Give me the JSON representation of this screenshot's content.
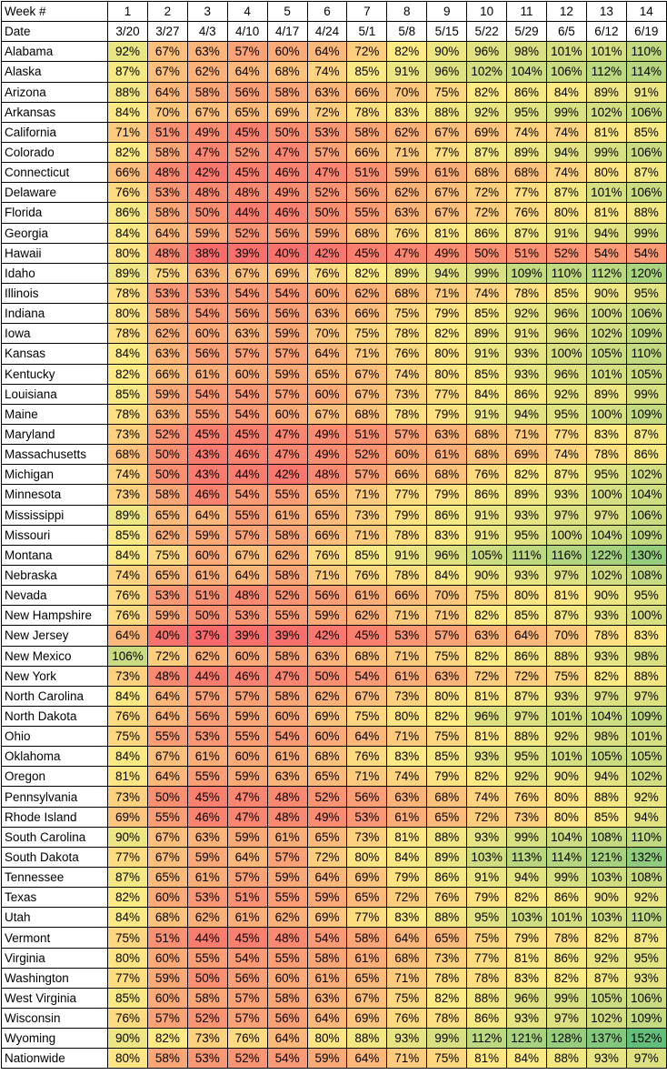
{
  "table": {
    "week_label": "Week #",
    "date_label": "Date",
    "weeks": [
      "1",
      "2",
      "3",
      "4",
      "5",
      "6",
      "7",
      "8",
      "9",
      "10",
      "11",
      "12",
      "13",
      "14"
    ],
    "dates": [
      "3/20",
      "3/27",
      "4/3",
      "4/10",
      "4/17",
      "4/24",
      "5/1",
      "5/8",
      "5/15",
      "5/22",
      "5/29",
      "6/5",
      "6/12",
      "6/19"
    ],
    "rows": [
      {
        "state": "Alabama",
        "values": [
          92,
          67,
          63,
          57,
          60,
          64,
          72,
          82,
          90,
          96,
          98,
          101,
          101,
          110
        ]
      },
      {
        "state": "Alaska",
        "values": [
          87,
          67,
          62,
          64,
          68,
          74,
          85,
          91,
          96,
          102,
          104,
          106,
          112,
          114
        ]
      },
      {
        "state": "Arizona",
        "values": [
          88,
          64,
          58,
          56,
          58,
          63,
          66,
          70,
          75,
          82,
          86,
          84,
          89,
          91
        ]
      },
      {
        "state": "Arkansas",
        "values": [
          84,
          70,
          67,
          65,
          69,
          72,
          78,
          83,
          88,
          92,
          95,
          99,
          102,
          106
        ]
      },
      {
        "state": "California",
        "values": [
          71,
          51,
          49,
          45,
          50,
          53,
          58,
          62,
          67,
          69,
          74,
          74,
          81,
          85
        ]
      },
      {
        "state": "Colorado",
        "values": [
          82,
          58,
          47,
          52,
          47,
          57,
          66,
          71,
          77,
          87,
          89,
          94,
          99,
          106
        ]
      },
      {
        "state": "Connecticut",
        "values": [
          66,
          48,
          42,
          45,
          46,
          47,
          51,
          59,
          61,
          68,
          68,
          74,
          80,
          87
        ]
      },
      {
        "state": "Delaware",
        "values": [
          76,
          53,
          48,
          48,
          49,
          52,
          56,
          62,
          67,
          72,
          77,
          87,
          101,
          106
        ]
      },
      {
        "state": "Florida",
        "values": [
          86,
          58,
          50,
          44,
          46,
          50,
          55,
          63,
          67,
          72,
          76,
          80,
          81,
          88
        ]
      },
      {
        "state": "Georgia",
        "values": [
          84,
          64,
          59,
          52,
          56,
          59,
          68,
          76,
          81,
          86,
          87,
          91,
          94,
          99
        ]
      },
      {
        "state": "Hawaii",
        "values": [
          80,
          48,
          38,
          39,
          40,
          42,
          45,
          47,
          49,
          50,
          51,
          52,
          54,
          54
        ]
      },
      {
        "state": "Idaho",
        "values": [
          89,
          75,
          63,
          67,
          69,
          76,
          82,
          89,
          94,
          99,
          109,
          110,
          112,
          120
        ]
      },
      {
        "state": "Illinois",
        "values": [
          78,
          53,
          53,
          54,
          54,
          60,
          62,
          68,
          71,
          74,
          78,
          85,
          90,
          95
        ]
      },
      {
        "state": "Indiana",
        "values": [
          80,
          58,
          54,
          56,
          56,
          63,
          66,
          75,
          79,
          85,
          92,
          96,
          100,
          106
        ]
      },
      {
        "state": "Iowa",
        "values": [
          78,
          62,
          60,
          63,
          59,
          70,
          75,
          78,
          82,
          89,
          91,
          96,
          102,
          109
        ]
      },
      {
        "state": "Kansas",
        "values": [
          84,
          63,
          56,
          57,
          57,
          64,
          71,
          76,
          80,
          91,
          93,
          100,
          105,
          110
        ]
      },
      {
        "state": "Kentucky",
        "values": [
          82,
          66,
          61,
          60,
          59,
          65,
          67,
          74,
          80,
          85,
          93,
          96,
          101,
          105
        ]
      },
      {
        "state": "Louisiana",
        "values": [
          85,
          59,
          54,
          54,
          57,
          60,
          67,
          73,
          77,
          84,
          86,
          92,
          89,
          99
        ]
      },
      {
        "state": "Maine",
        "values": [
          78,
          63,
          55,
          54,
          60,
          67,
          68,
          78,
          79,
          91,
          94,
          95,
          100,
          109
        ]
      },
      {
        "state": "Maryland",
        "values": [
          73,
          52,
          45,
          45,
          47,
          49,
          51,
          57,
          63,
          68,
          71,
          77,
          83,
          87
        ]
      },
      {
        "state": "Massachusetts",
        "values": [
          68,
          50,
          43,
          46,
          47,
          49,
          52,
          60,
          61,
          68,
          69,
          74,
          78,
          86
        ]
      },
      {
        "state": "Michigan",
        "values": [
          74,
          50,
          43,
          44,
          42,
          48,
          57,
          66,
          68,
          76,
          82,
          87,
          95,
          102
        ]
      },
      {
        "state": "Minnesota",
        "values": [
          73,
          58,
          46,
          54,
          55,
          65,
          71,
          77,
          79,
          86,
          89,
          93,
          100,
          104
        ]
      },
      {
        "state": "Mississippi",
        "values": [
          89,
          65,
          64,
          55,
          61,
          65,
          73,
          79,
          86,
          91,
          93,
          97,
          97,
          106
        ]
      },
      {
        "state": "Missouri",
        "values": [
          85,
          62,
          59,
          57,
          58,
          66,
          71,
          78,
          83,
          91,
          95,
          100,
          104,
          109
        ]
      },
      {
        "state": "Montana",
        "values": [
          84,
          75,
          60,
          67,
          62,
          76,
          85,
          91,
          96,
          105,
          111,
          116,
          122,
          130
        ]
      },
      {
        "state": "Nebraska",
        "values": [
          74,
          65,
          61,
          64,
          58,
          71,
          76,
          78,
          84,
          90,
          93,
          97,
          102,
          108
        ]
      },
      {
        "state": "Nevada",
        "values": [
          76,
          53,
          51,
          48,
          52,
          56,
          61,
          66,
          70,
          75,
          80,
          81,
          90,
          95
        ]
      },
      {
        "state": "New Hampshire",
        "values": [
          76,
          59,
          50,
          53,
          55,
          59,
          62,
          71,
          71,
          82,
          85,
          87,
          93,
          100
        ]
      },
      {
        "state": "New Jersey",
        "values": [
          64,
          40,
          37,
          39,
          39,
          42,
          45,
          53,
          57,
          63,
          64,
          70,
          78,
          83
        ]
      },
      {
        "state": "New Mexico",
        "values": [
          106,
          72,
          62,
          60,
          58,
          63,
          68,
          71,
          75,
          82,
          86,
          88,
          93,
          98
        ]
      },
      {
        "state": "New York",
        "values": [
          73,
          48,
          44,
          46,
          47,
          50,
          54,
          61,
          63,
          72,
          72,
          75,
          82,
          88
        ]
      },
      {
        "state": "North Carolina",
        "values": [
          84,
          64,
          57,
          57,
          58,
          62,
          67,
          73,
          80,
          81,
          87,
          93,
          97,
          97
        ]
      },
      {
        "state": "North Dakota",
        "values": [
          76,
          64,
          56,
          59,
          60,
          69,
          75,
          80,
          82,
          96,
          97,
          101,
          104,
          109
        ]
      },
      {
        "state": "Ohio",
        "values": [
          75,
          55,
          53,
          55,
          54,
          60,
          64,
          71,
          75,
          81,
          88,
          92,
          98,
          101
        ]
      },
      {
        "state": "Oklahoma",
        "values": [
          84,
          67,
          61,
          60,
          61,
          68,
          76,
          83,
          85,
          93,
          95,
          101,
          105,
          105
        ]
      },
      {
        "state": "Oregon",
        "values": [
          81,
          64,
          55,
          59,
          63,
          65,
          71,
          74,
          79,
          82,
          92,
          90,
          94,
          102
        ]
      },
      {
        "state": "Pennsylvania",
        "values": [
          73,
          50,
          45,
          47,
          48,
          52,
          56,
          63,
          68,
          74,
          76,
          80,
          88,
          92
        ]
      },
      {
        "state": "Rhode Island",
        "values": [
          69,
          55,
          46,
          47,
          48,
          49,
          53,
          61,
          65,
          72,
          73,
          80,
          85,
          94
        ]
      },
      {
        "state": "South Carolina",
        "values": [
          90,
          67,
          63,
          59,
          61,
          65,
          73,
          81,
          88,
          93,
          99,
          104,
          108,
          110
        ]
      },
      {
        "state": "South Dakota",
        "values": [
          77,
          67,
          59,
          64,
          57,
          72,
          80,
          84,
          89,
          103,
          113,
          114,
          121,
          132
        ]
      },
      {
        "state": "Tennessee",
        "values": [
          87,
          65,
          61,
          57,
          59,
          64,
          69,
          79,
          86,
          91,
          94,
          99,
          103,
          108
        ]
      },
      {
        "state": "Texas",
        "values": [
          82,
          60,
          53,
          51,
          55,
          59,
          65,
          72,
          76,
          79,
          82,
          86,
          90,
          92
        ]
      },
      {
        "state": "Utah",
        "values": [
          84,
          68,
          62,
          61,
          62,
          69,
          77,
          83,
          88,
          95,
          103,
          101,
          103,
          110
        ]
      },
      {
        "state": "Vermont",
        "values": [
          75,
          51,
          44,
          45,
          48,
          54,
          58,
          64,
          65,
          75,
          79,
          78,
          82,
          87
        ]
      },
      {
        "state": "Virginia",
        "values": [
          80,
          60,
          55,
          54,
          55,
          58,
          61,
          68,
          73,
          77,
          81,
          86,
          92,
          95
        ]
      },
      {
        "state": "Washington",
        "values": [
          77,
          59,
          50,
          56,
          60,
          61,
          65,
          71,
          78,
          78,
          83,
          82,
          87,
          93
        ]
      },
      {
        "state": "West Virginia",
        "values": [
          85,
          60,
          58,
          57,
          58,
          63,
          67,
          75,
          82,
          88,
          96,
          99,
          105,
          106
        ]
      },
      {
        "state": "Wisconsin",
        "values": [
          76,
          57,
          52,
          57,
          56,
          64,
          69,
          76,
          78,
          86,
          93,
          97,
          102,
          109
        ]
      },
      {
        "state": "Wyoming",
        "values": [
          90,
          82,
          73,
          76,
          64,
          80,
          88,
          93,
          99,
          112,
          121,
          128,
          137,
          152
        ]
      },
      {
        "state": "Nationwide",
        "values": [
          80,
          58,
          53,
          52,
          54,
          59,
          64,
          71,
          75,
          81,
          84,
          88,
          93,
          97
        ]
      }
    ],
    "value_suffix": "%",
    "colors": {
      "low": "#f8696b",
      "mid": "#ffeb84",
      "high": "#63be7b",
      "header_bg": "#ffffff",
      "label_bg": "#ffffff",
      "border": "#000000"
    }
  }
}
